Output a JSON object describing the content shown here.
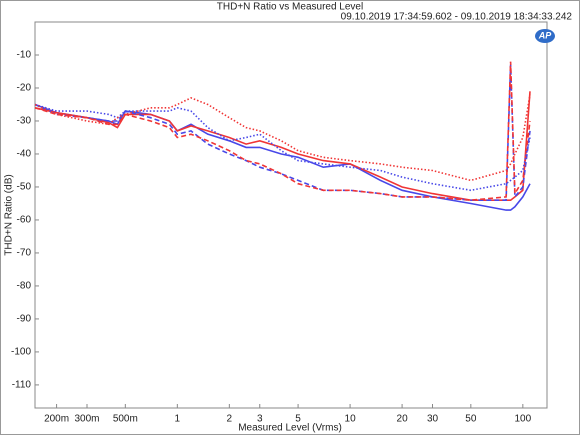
{
  "chart_data": {
    "type": "line",
    "title": "THD+N Ratio vs Measured Level",
    "subtitle": "09.10.2019 17:34:59.602 - 09.10.2019 18:34:33.242",
    "logo": "AP",
    "x_label": "Measured Level (Vrms)",
    "y_label": "THD+N Ratio (dB)",
    "x_scale": "log",
    "grid": false,
    "xlim": [
      0.15,
      138
    ],
    "ylim": [
      -117,
      0
    ],
    "xticks": [
      {
        "value": 0.2,
        "label": "200m"
      },
      {
        "value": 0.3,
        "label": "300m"
      },
      {
        "value": 0.5,
        "label": "500m"
      },
      1,
      2,
      3,
      5,
      10,
      20,
      30,
      50,
      100
    ],
    "yticks": [
      -10,
      -20,
      -30,
      -40,
      -50,
      -60,
      -70,
      -80,
      -90,
      -100,
      -110
    ],
    "x": [
      0.15,
      0.2,
      0.3,
      0.4,
      0.45,
      0.5,
      0.7,
      0.9,
      1,
      1.2,
      1.5,
      2,
      2.5,
      3,
      4,
      5,
      7,
      10,
      15,
      20,
      30,
      50,
      80,
      85,
      90,
      100,
      110
    ],
    "series": [
      {
        "color": "#4848e8",
        "dash": "solid",
        "values": [
          -25,
          -27.5,
          -29,
          -30,
          -31,
          -27,
          -28,
          -30,
          -33,
          -31,
          -34,
          -36,
          -38,
          -38,
          -40,
          -41,
          -44,
          -43,
          -48,
          -51,
          -53,
          -55,
          -57,
          -57,
          -56,
          -53,
          -49
        ]
      },
      {
        "color": "#f03535",
        "dash": "solid",
        "values": [
          -26,
          -27.5,
          -29,
          -30.5,
          -32,
          -28,
          -28,
          -30,
          -33,
          -31.5,
          -33,
          -35,
          -37,
          -36,
          -38,
          -40,
          -42,
          -43,
          -47,
          -50,
          -52,
          -54,
          -54,
          -54,
          -53,
          -51,
          -21
        ]
      },
      {
        "color": "#4848e8",
        "dash": "dashed",
        "values": [
          -25,
          -28,
          -29,
          -30,
          -30,
          -27,
          -29,
          -31,
          -34,
          -33,
          -37,
          -40,
          -42,
          -44,
          -46,
          -48,
          -51,
          -51,
          -52,
          -53,
          -53,
          -54,
          -54,
          -13,
          -53,
          -50,
          -33
        ]
      },
      {
        "color": "#f03535",
        "dash": "dashed",
        "values": [
          -26,
          -28,
          -29,
          -31,
          -31,
          -28,
          -30,
          -32,
          -35,
          -34,
          -36,
          -39,
          -42,
          -43,
          -46,
          -49,
          -51,
          -51,
          -52,
          -53,
          -53,
          -54,
          -53,
          -12,
          -52,
          -48,
          -30
        ]
      },
      {
        "color": "#4848e8",
        "dash": "dotted",
        "values": [
          -25,
          -27,
          -27,
          -28,
          -29,
          -27,
          -27,
          -27,
          -26,
          -27,
          -32,
          -36,
          -35,
          -34,
          -39,
          -42,
          -43,
          -44,
          -45,
          -47,
          -49,
          -51,
          -49,
          -48,
          -47,
          -45,
          -35
        ]
      },
      {
        "color": "#f03535",
        "dash": "dotted",
        "values": [
          -25,
          -28,
          -30,
          -31,
          -29,
          -28,
          -26,
          -26,
          -25,
          -23,
          -25,
          -29,
          -32,
          -33,
          -36,
          -39,
          -41,
          -42,
          -43,
          -44,
          -45,
          -48,
          -45,
          -43,
          -40,
          -35,
          -22
        ]
      }
    ]
  }
}
